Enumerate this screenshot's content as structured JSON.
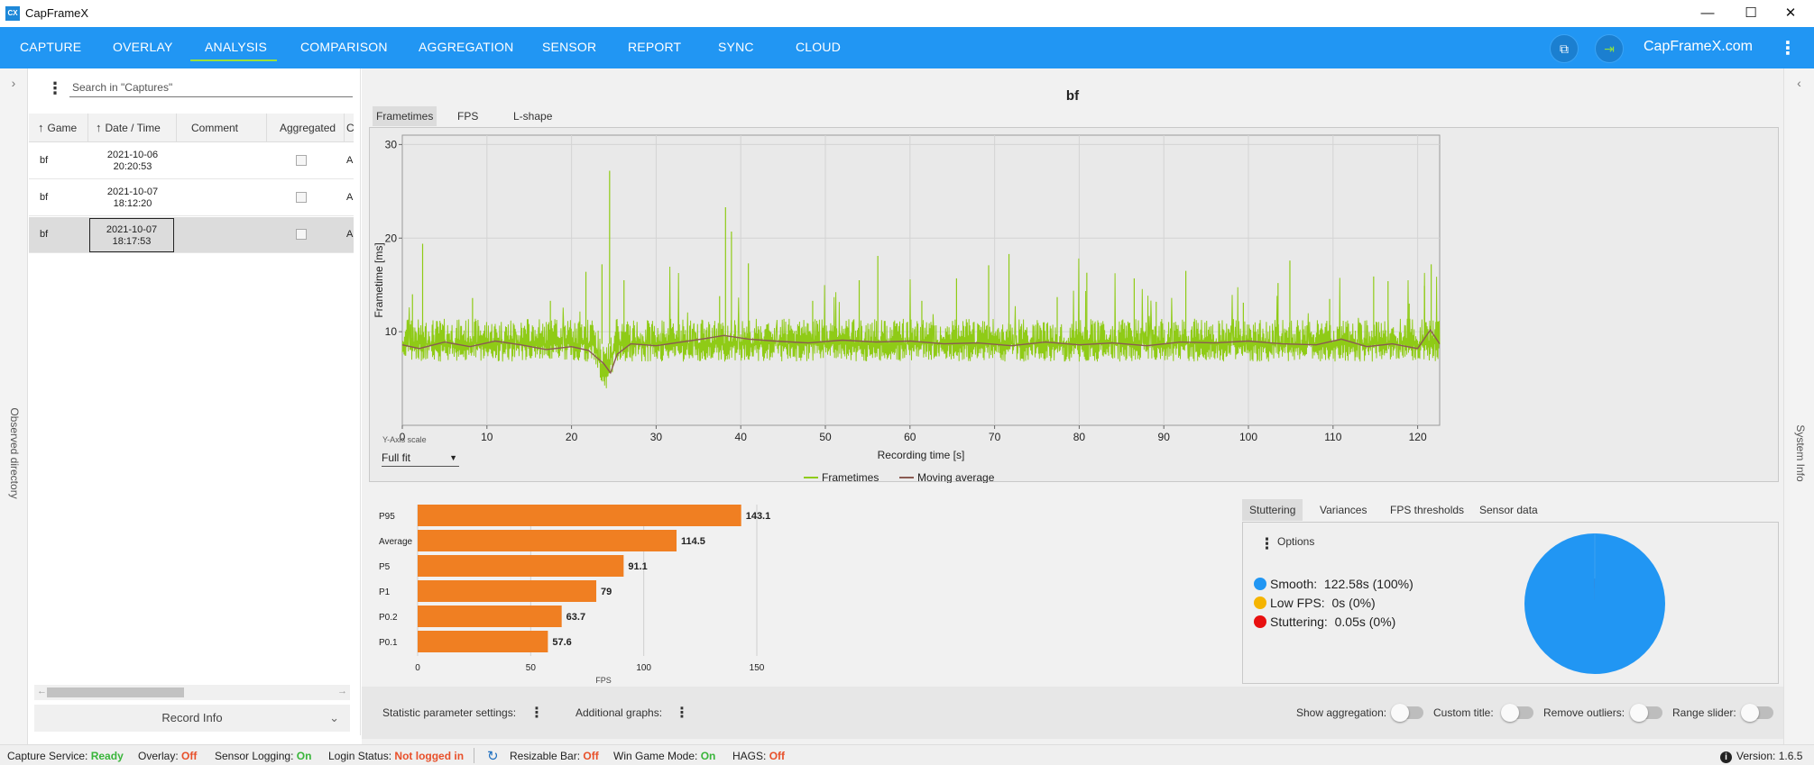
{
  "app": {
    "title": "CapFrameX",
    "logo_text": "CX"
  },
  "window_controls": {
    "minimize": "—",
    "maximize": "☐",
    "close": "✕"
  },
  "nav": {
    "tabs": [
      "CAPTURE",
      "OVERLAY",
      "ANALYSIS",
      "COMPARISON",
      "AGGREGATION",
      "SENSOR",
      "REPORT",
      "SYNC",
      "CLOUD"
    ],
    "active": "ANALYSIS",
    "site_link": "CapFrameX.com",
    "screenshot_icon": "⧉",
    "login_icon": "⇥",
    "more": "⋮"
  },
  "side": {
    "left_label": "Observed directory",
    "right_label": "System Info",
    "left_chevron": "›",
    "right_chevron": "‹"
  },
  "captures": {
    "search_placeholder": "Search in \"Captures\"",
    "more": "⋮",
    "sort_arrow": "↑",
    "columns": {
      "game": "Game",
      "date": "Date / Time",
      "comment": "Comment",
      "aggregated": "Aggregated",
      "extra": "C"
    },
    "rows": [
      {
        "game": "bf",
        "date": "2021-10-06",
        "time": "20:20:53",
        "comment": "",
        "extra": "A"
      },
      {
        "game": "bf",
        "date": "2021-10-07",
        "time": "18:12:20",
        "comment": "",
        "extra": "A"
      },
      {
        "game": "bf",
        "date": "2021-10-07",
        "time": "18:17:53",
        "comment": "",
        "extra": "A"
      }
    ],
    "scroll_left": "←",
    "scroll_right": "→",
    "record_info": "Record Info",
    "record_chevron": "⌄"
  },
  "analysis": {
    "title": "bf",
    "tabs": [
      "Frametimes",
      "FPS",
      "L-shape"
    ],
    "active_tab": "Frametimes",
    "y_axis_scale_label": "Y-Axis scale",
    "y_axis_scale_value": "Full fit",
    "y_axis_scale_caret": "▼"
  },
  "chart_data": [
    {
      "type": "line",
      "title": "bf",
      "xlabel": "Recording time [s]",
      "ylabel": "Frametime [ms]",
      "xlim": [
        0,
        122.6
      ],
      "ylim": [
        0,
        31
      ],
      "xticks": [
        0,
        10,
        20,
        30,
        40,
        50,
        60,
        70,
        80,
        90,
        100,
        110,
        120
      ],
      "yticks": [
        10,
        20,
        30
      ],
      "grid": true,
      "legend": "bottom-center",
      "series": [
        {
          "name": "Frametimes",
          "color": "#8fcb16",
          "baseline_ms": 8.7,
          "band_ms": [
            6.8,
            11.4
          ],
          "spikes": [
            [
              1.2,
              14
            ],
            [
              2.4,
              19.4
            ],
            [
              8.3,
              13.6
            ],
            [
              17.5,
              13.3
            ],
            [
              21.7,
              16.4
            ],
            [
              23.6,
              17.2
            ],
            [
              24.5,
              27.2
            ],
            [
              26.2,
              15.5
            ],
            [
              37.5,
              13.8
            ],
            [
              38.2,
              23.3
            ],
            [
              38.9,
              20.7
            ],
            [
              40.9,
              17.3
            ],
            [
              48.5,
              13.3
            ],
            [
              54.0,
              15.5
            ],
            [
              56.2,
              18.1
            ],
            [
              61.4,
              13.3
            ],
            [
              65.5,
              15.7
            ],
            [
              69.3,
              17.1
            ],
            [
              71.7,
              18.3
            ],
            [
              77.4,
              13.7
            ],
            [
              80.9,
              16.3
            ],
            [
              86.5,
              15.7
            ],
            [
              89.1,
              13.2
            ],
            [
              92.6,
              16.5
            ],
            [
              99.4,
              13.1
            ],
            [
              103.5,
              15.2
            ],
            [
              104.9,
              17.6
            ],
            [
              109.6,
              13.5
            ],
            [
              114.8,
              15.9
            ],
            [
              116.5,
              15.4
            ],
            [
              119.0,
              13.0
            ],
            [
              120.8,
              14.9
            ],
            [
              121.6,
              17.2
            ]
          ],
          "dip": [
            24.0,
            5.4
          ]
        },
        {
          "name": "Moving average",
          "color": "#8a5a52",
          "points": [
            [
              0,
              8.6
            ],
            [
              2,
              8.2
            ],
            [
              5,
              8.9
            ],
            [
              8,
              8.4
            ],
            [
              11,
              9.0
            ],
            [
              14,
              8.6
            ],
            [
              17,
              8.1
            ],
            [
              20,
              8.4
            ],
            [
              22,
              8.0
            ],
            [
              23.8,
              6.6
            ],
            [
              24.6,
              5.6
            ],
            [
              25.4,
              7.6
            ],
            [
              27,
              8.7
            ],
            [
              30,
              8.5
            ],
            [
              33,
              8.9
            ],
            [
              36,
              9.3
            ],
            [
              38,
              9.6
            ],
            [
              41,
              9.2
            ],
            [
              44,
              9.0
            ],
            [
              48,
              8.8
            ],
            [
              52,
              9.1
            ],
            [
              56,
              8.9
            ],
            [
              60,
              9.0
            ],
            [
              64,
              8.7
            ],
            [
              68,
              8.8
            ],
            [
              72,
              8.5
            ],
            [
              76,
              8.9
            ],
            [
              80,
              8.6
            ],
            [
              84,
              8.8
            ],
            [
              88,
              8.5
            ],
            [
              92,
              8.9
            ],
            [
              96,
              8.8
            ],
            [
              100,
              9.0
            ],
            [
              104,
              8.7
            ],
            [
              108,
              8.6
            ],
            [
              111,
              9.2
            ],
            [
              114,
              8.4
            ],
            [
              117,
              8.7
            ],
            [
              120,
              8.2
            ],
            [
              121.5,
              10.2
            ],
            [
              122.6,
              8.7
            ]
          ]
        }
      ]
    },
    {
      "type": "bar",
      "orientation": "horizontal",
      "categories": [
        "P95",
        "Average",
        "P5",
        "P1",
        "P0.2",
        "P0.1"
      ],
      "values": [
        143.1,
        114.5,
        91.1,
        79,
        63.7,
        57.6
      ],
      "value_labels": [
        "143.1",
        "114.5",
        "91.1",
        "79",
        "63.7",
        "57.6"
      ],
      "xlabel": "FPS",
      "xlim": [
        0,
        150
      ],
      "xticks": [
        0,
        50,
        100,
        150
      ],
      "color": "#f07f22"
    },
    {
      "type": "pie",
      "labels": [
        "Smooth",
        "Low FPS",
        "Stuttering"
      ],
      "values": [
        122.58,
        0,
        0.05
      ],
      "colors": [
        "#2196f3",
        "#f5b400",
        "#e81010"
      ]
    }
  ],
  "stuttering": {
    "tabs": [
      "Stuttering",
      "Variances",
      "FPS thresholds",
      "Sensor data"
    ],
    "active_tab": "Stuttering",
    "options_dots": "⋮",
    "options_label": "Options",
    "legend": [
      {
        "label": "Smooth:",
        "value": "122.58s (100%)"
      },
      {
        "label": "Low FPS:",
        "value": "0s (0%)"
      },
      {
        "label": "Stuttering:",
        "value": "0.05s (0%)"
      }
    ]
  },
  "bottom": {
    "statistic_settings": "Statistic parameter settings:",
    "additional_graphs": "Additional graphs:",
    "dots": "⋮",
    "show_aggregation": "Show aggregation:",
    "custom_title": "Custom title:",
    "remove_outliers": "Remove outliers:",
    "range_slider": "Range slider:"
  },
  "status": {
    "capture_service_label": "Capture Service:",
    "capture_service_value": "Ready",
    "overlay_label": "Overlay:",
    "overlay_value": "Off",
    "sensor_logging_label": "Sensor Logging:",
    "sensor_logging_value": "On",
    "login_status_label": "Login Status:",
    "login_status_value": "Not logged in",
    "resizable_bar_label": "Resizable Bar:",
    "resizable_bar_value": "Off",
    "win_game_mode_label": "Win Game Mode:",
    "win_game_mode_value": "On",
    "hags_label": "HAGS:",
    "hags_value": "Off",
    "refresh_icon": "↻",
    "version_icon": "i",
    "version": "Version: 1.6.5",
    "colors": {
      "ok": "#39b53a",
      "off": "#e8502a"
    }
  }
}
